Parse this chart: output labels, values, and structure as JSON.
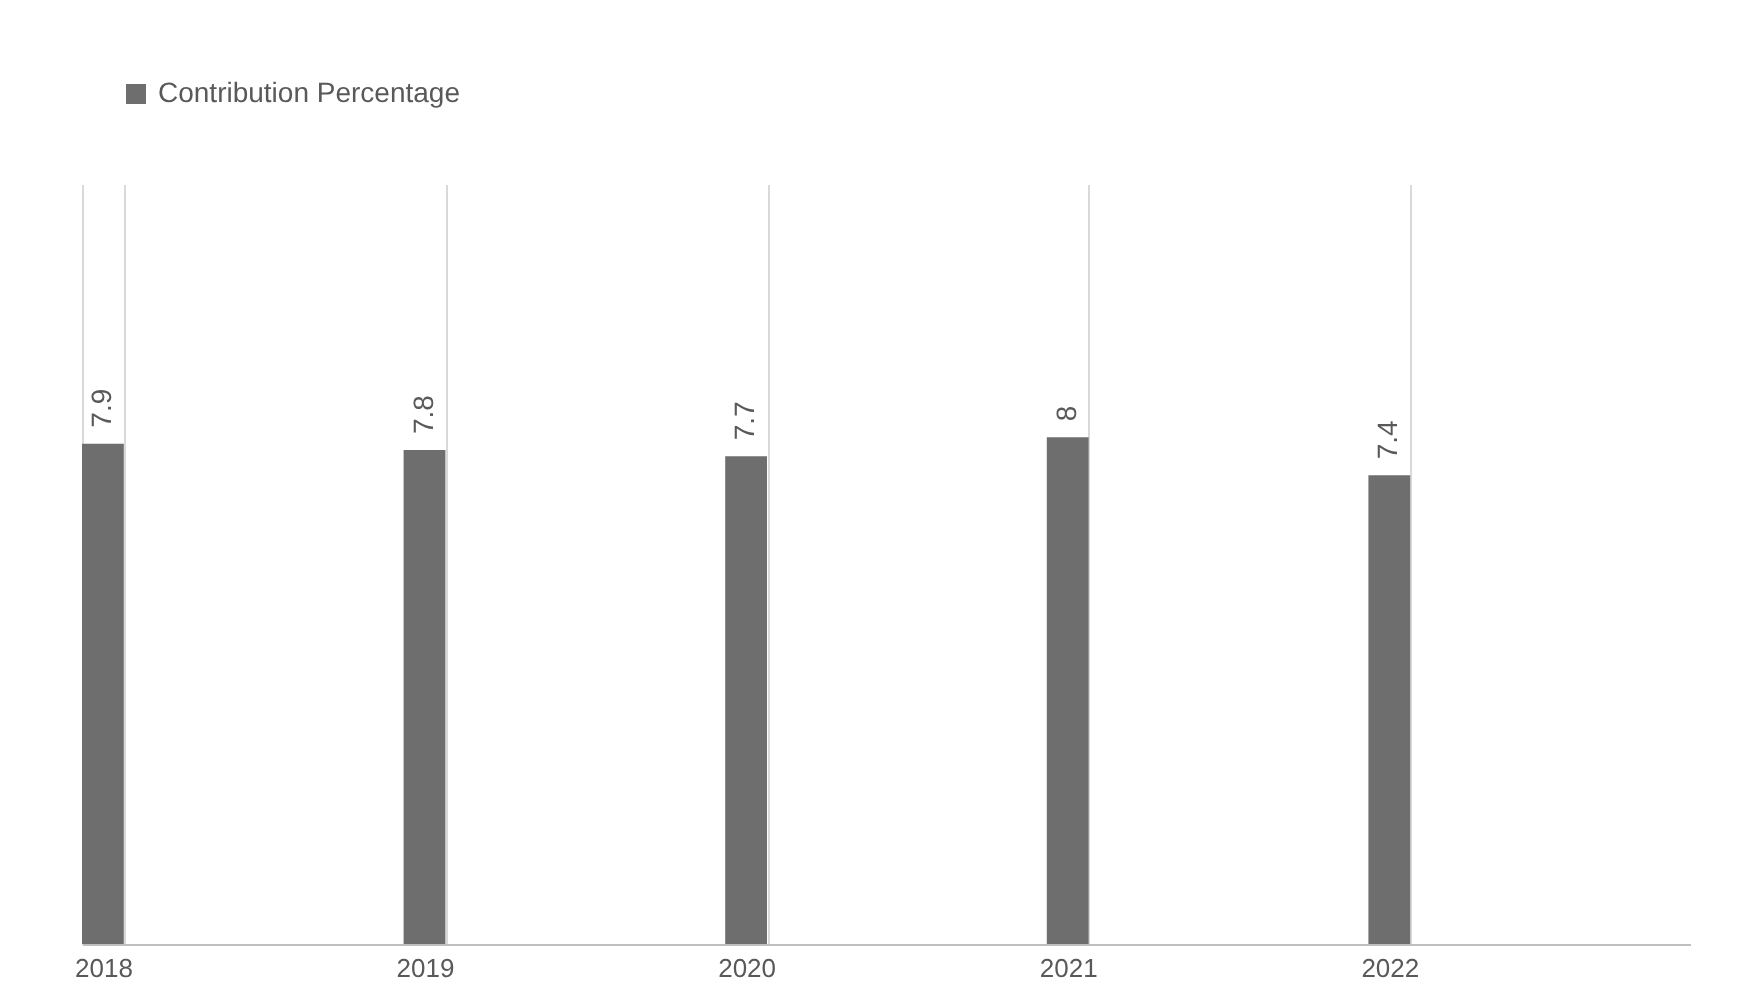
{
  "chart_data": {
    "type": "bar",
    "categories": [
      "2018",
      "2019",
      "2020",
      "2021",
      "2022"
    ],
    "series": [
      {
        "name": "Contribution Percentage",
        "color": "#6e6e6e",
        "values": [
          7.9,
          7.8,
          7.7,
          8,
          7.4
        ]
      }
    ],
    "ylim": [
      0,
      12
    ],
    "data_labels": true,
    "legend": "top",
    "grid": "x",
    "tick_labels": "x"
  }
}
